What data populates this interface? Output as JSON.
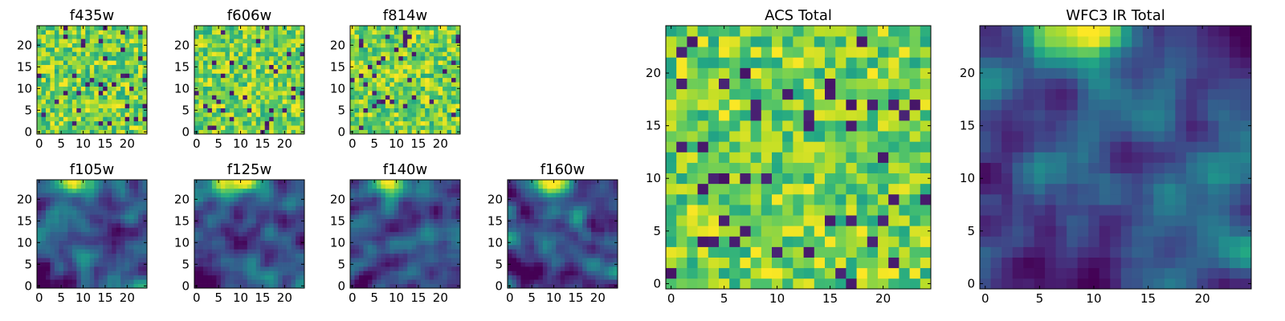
{
  "chart_data": [
    {
      "type": "heatmap",
      "title": "f435w",
      "grid_size": 25,
      "colormap": "viridis",
      "data_note": "pixel values are a noisy image; reconstructed approximately",
      "pattern": "noise",
      "xticks": [
        "0",
        "5",
        "10",
        "15",
        "20"
      ],
      "yticks": [
        "0",
        "5",
        "10",
        "15",
        "20"
      ]
    },
    {
      "type": "heatmap",
      "title": "f606w",
      "grid_size": 25,
      "colormap": "viridis",
      "data_note": "pixel values are a noisy image; reconstructed approximately",
      "pattern": "noise",
      "xticks": [
        "0",
        "5",
        "10",
        "15",
        "20"
      ],
      "yticks": [
        "0",
        "5",
        "10",
        "15",
        "20"
      ]
    },
    {
      "type": "heatmap",
      "title": "f814w",
      "grid_size": 25,
      "colormap": "viridis",
      "data_note": "pixel values are a noisy image; reconstructed approximately",
      "pattern": "noise",
      "xticks": [
        "0",
        "5",
        "10",
        "15",
        "20"
      ],
      "yticks": [
        "0",
        "5",
        "10",
        "15",
        "20"
      ]
    },
    {
      "type": "heatmap",
      "title": "f105w",
      "grid_size": 25,
      "colormap": "viridis",
      "data_note": "pixel values are a smooth image; reconstructed approximately",
      "pattern": "smooth",
      "xticks": [
        "0",
        "5",
        "10",
        "15",
        "20"
      ],
      "yticks": [
        "0",
        "5",
        "10",
        "15",
        "20"
      ]
    },
    {
      "type": "heatmap",
      "title": "f125w",
      "grid_size": 25,
      "colormap": "viridis",
      "data_note": "pixel values are a smooth image; reconstructed approximately",
      "pattern": "smooth",
      "xticks": [
        "0",
        "5",
        "10",
        "15",
        "20"
      ],
      "yticks": [
        "0",
        "5",
        "10",
        "15",
        "20"
      ]
    },
    {
      "type": "heatmap",
      "title": "f140w",
      "grid_size": 25,
      "colormap": "viridis",
      "data_note": "pixel values are a smooth image; reconstructed approximately",
      "pattern": "smooth",
      "xticks": [
        "0",
        "5",
        "10",
        "15",
        "20"
      ],
      "yticks": [
        "0",
        "5",
        "10",
        "15",
        "20"
      ]
    },
    {
      "type": "heatmap",
      "title": "f160w",
      "grid_size": 25,
      "colormap": "viridis",
      "data_note": "pixel values are a smooth image; reconstructed approximately",
      "pattern": "smooth",
      "xticks": [
        "0",
        "5",
        "10",
        "15",
        "20"
      ],
      "yticks": [
        "0",
        "5",
        "10",
        "15",
        "20"
      ]
    },
    {
      "type": "heatmap",
      "title": "ACS Total",
      "grid_size": 25,
      "colormap": "viridis",
      "data_note": "pixel values are a noisy image; reconstructed approximately",
      "pattern": "noise",
      "xticks": [
        "0",
        "5",
        "10",
        "15",
        "20"
      ],
      "yticks": [
        "0",
        "5",
        "10",
        "15",
        "20"
      ]
    },
    {
      "type": "heatmap",
      "title": "WFC3 IR Total",
      "grid_size": 25,
      "colormap": "viridis",
      "data_note": "pixel values are a smooth image; reconstructed approximately",
      "pattern": "smooth",
      "xticks": [
        "0",
        "5",
        "10",
        "15",
        "20"
      ],
      "yticks": [
        "0",
        "5",
        "10",
        "15",
        "20"
      ]
    }
  ]
}
